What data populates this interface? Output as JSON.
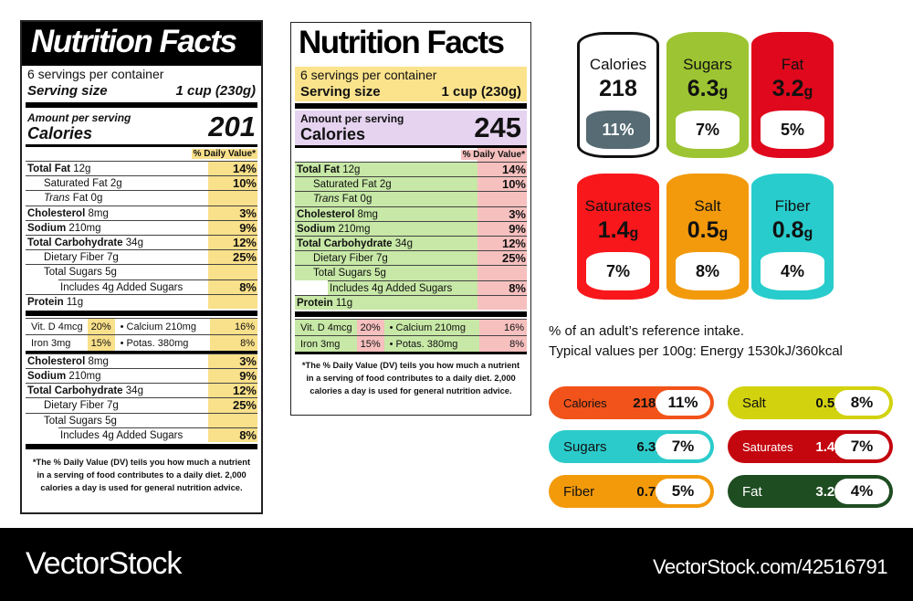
{
  "colors": {
    "label1_dv": "#f9e08a",
    "label2_serving": "#fbe38c",
    "label2_amount": "#e6d3f0",
    "label2_rows": "#c7e8a6",
    "label2_dv": "#f6c0bf"
  },
  "label1": {
    "title": "Nutrition Facts",
    "servings": "6 servings per container",
    "serving_size_label": "Serving size",
    "serving_size": "1 cup (230g)",
    "amount_label": "Amount per serving",
    "calories_label": "Calories",
    "calories": "201",
    "dv_header": "% Daily Value*",
    "rows": [
      {
        "name": "Total Fat",
        "amount": "12g",
        "dv": "14%",
        "bold": true,
        "level": 0
      },
      {
        "name": "Saturated Fat",
        "amount": "2g",
        "dv": "10%",
        "bold": false,
        "level": 1
      },
      {
        "name": "Trans",
        "amount": "Fat 0g",
        "dv": "",
        "bold": false,
        "italic": true,
        "level": 1
      },
      {
        "name": "Cholesterol",
        "amount": "8mg",
        "dv": "3%",
        "bold": true,
        "level": 0
      },
      {
        "name": "Sodium",
        "amount": "210mg",
        "dv": "9%",
        "bold": true,
        "level": 0
      },
      {
        "name": "Total Carbohydrate",
        "amount": "34g",
        "dv": "12%",
        "bold": true,
        "level": 0
      },
      {
        "name": "Dietary Fiber",
        "amount": "7g",
        "dv": "25%",
        "bold": false,
        "level": 1
      },
      {
        "name": "Total Sugars",
        "amount": "5g",
        "dv": "",
        "bold": false,
        "level": 1
      },
      {
        "name": "Includes 4g Added Sugars",
        "amount": "",
        "dv": "8%",
        "bold": false,
        "level": 2
      },
      {
        "name": "Protein",
        "amount": "11g",
        "dv": "",
        "bold": true,
        "level": 0
      }
    ],
    "vitamins": [
      [
        {
          "name": "Vit. D 4mcg",
          "dv": "20%"
        },
        {
          "name": "Calcium 210mg",
          "dv": "16%"
        }
      ],
      [
        {
          "name": "Iron 3mg",
          "dv": "15%"
        },
        {
          "name": "Potas. 380mg",
          "dv": "8%"
        }
      ]
    ],
    "rows2": [
      {
        "name": "Cholesterol",
        "amount": "8mg",
        "dv": "3%",
        "bold": true,
        "level": 0
      },
      {
        "name": "Sodium",
        "amount": "210mg",
        "dv": "9%",
        "bold": true,
        "level": 0
      },
      {
        "name": "Total Carbohydrate",
        "amount": "34g",
        "dv": "12%",
        "bold": true,
        "level": 0
      },
      {
        "name": "Dietary Fiber",
        "amount": "7g",
        "dv": "25%",
        "bold": false,
        "level": 1
      },
      {
        "name": "Total Sugars",
        "amount": "5g",
        "dv": "",
        "bold": false,
        "level": 1
      },
      {
        "name": "Includes 4g Added Sugars",
        "amount": "",
        "dv": "8%",
        "bold": false,
        "level": 2
      }
    ],
    "footnote": "*The % Daily Value (DV) teils you how much a nutrient in a serving of food contributes to a daily diet. 2,000 calories a day is used for general nutrition advice."
  },
  "label2": {
    "title": "Nutrition Facts",
    "servings": "6 servings per container",
    "serving_size_label": "Serving size",
    "serving_size": "1 cup (230g)",
    "amount_label": "Amount per serving",
    "calories_label": "Calories",
    "calories": "245",
    "dv_header": "% Daily Value*",
    "rows": [
      {
        "name": "Total Fat",
        "amount": "12g",
        "dv": "14%",
        "bold": true,
        "level": 0
      },
      {
        "name": "Saturated Fat",
        "amount": "2g",
        "dv": "10%",
        "bold": false,
        "level": 1
      },
      {
        "name": "Trans",
        "amount": "Fat 0g",
        "dv": "",
        "bold": false,
        "italic": true,
        "level": 1
      },
      {
        "name": "Cholesterol",
        "amount": "8mg",
        "dv": "3%",
        "bold": true,
        "level": 0
      },
      {
        "name": "Sodium",
        "amount": "210mg",
        "dv": "9%",
        "bold": true,
        "level": 0
      },
      {
        "name": "Total Carbohydrate",
        "amount": "34g",
        "dv": "12%",
        "bold": true,
        "level": 0
      },
      {
        "name": "Dietary Fiber",
        "amount": "7g",
        "dv": "25%",
        "bold": false,
        "level": 1
      },
      {
        "name": "Total Sugars",
        "amount": "5g",
        "dv": "",
        "bold": false,
        "level": 1
      },
      {
        "name": "Includes 4g Added Sugars",
        "amount": "",
        "dv": "8%",
        "bold": false,
        "level": 2
      },
      {
        "name": "Protein",
        "amount": "11g",
        "dv": "",
        "bold": true,
        "level": 0
      }
    ],
    "vitamins": [
      [
        {
          "name": "Vit. D 4mcg",
          "dv": "20%"
        },
        {
          "name": "Calcium 210mg",
          "dv": "16%"
        }
      ],
      [
        {
          "name": "Iron 3mg",
          "dv": "15%"
        },
        {
          "name": "Potas. 380mg",
          "dv": "8%"
        }
      ]
    ],
    "footnote": "*The % Daily Value (DV) teils you how much a nutrient in a serving of food contributes to a daily diet. 2,000 calories a day is used for general nutrition advice."
  },
  "cylinders": [
    {
      "name": "Calories",
      "value": "218",
      "unit": "",
      "pct": "11%",
      "color": "#ffffff",
      "border": "#111111",
      "pct_bg": "#566b73",
      "pct_color": "#ffffff",
      "text": "#111111"
    },
    {
      "name": "Sugars",
      "value": "6.3",
      "unit": "g",
      "pct": "7%",
      "color": "#9dc432",
      "border": "#9dc432",
      "pct_bg": "#ffffff",
      "pct_color": "#111111",
      "text": "#111111"
    },
    {
      "name": "Fat",
      "value": "3.2",
      "unit": "g",
      "pct": "5%",
      "color": "#e0081c",
      "border": "#e0081c",
      "pct_bg": "#ffffff",
      "pct_color": "#111111",
      "text": "#111111"
    },
    {
      "name": "Saturates",
      "value": "1.4",
      "unit": "g",
      "pct": "7%",
      "color": "#f8171b",
      "border": "#f8171b",
      "pct_bg": "#ffffff",
      "pct_color": "#111111",
      "text": "#111111"
    },
    {
      "name": "Salt",
      "value": "0.5",
      "unit": "g",
      "pct": "8%",
      "color": "#f29a0c",
      "border": "#f29a0c",
      "pct_bg": "#ffffff",
      "pct_color": "#111111",
      "text": "#111111"
    },
    {
      "name": "Fiber",
      "value": "0.8",
      "unit": "g",
      "pct": "4%",
      "color": "#28cccc",
      "border": "#28cccc",
      "pct_bg": "#ffffff",
      "pct_color": "#111111",
      "text": "#111111"
    }
  ],
  "info": {
    "line1": "% of an adult’s reference intake.",
    "line2": "Typical values per 100g: Energy 1530kJ/360kcal"
  },
  "pills": [
    {
      "name": "Calories",
      "value": "218",
      "unit": "g",
      "pct": "11%",
      "color": "#f2531a",
      "text": "#111111"
    },
    {
      "name": "Salt",
      "value": "0.5",
      "unit": "g",
      "pct": "8%",
      "color": "#d2d20f",
      "text": "#111111"
    },
    {
      "name": "Sugars",
      "value": "6.3",
      "unit": "g",
      "pct": "7%",
      "color": "#2ccbcb",
      "text": "#111111"
    },
    {
      "name": "Saturates",
      "value": "1.4",
      "unit": "g",
      "pct": "7%",
      "color": "#c4060f",
      "text": "#ffffff"
    },
    {
      "name": "Fiber",
      "value": "0.7",
      "unit": "g",
      "pct": "5%",
      "color": "#f39a0b",
      "text": "#111111"
    },
    {
      "name": "Fat",
      "value": "3.2",
      "unit": "g",
      "pct": "4%",
      "color": "#1f4d22",
      "text": "#ffffff"
    }
  ],
  "footer": {
    "brand": "VectorStock",
    "url": "VectorStock.com/42516791"
  }
}
